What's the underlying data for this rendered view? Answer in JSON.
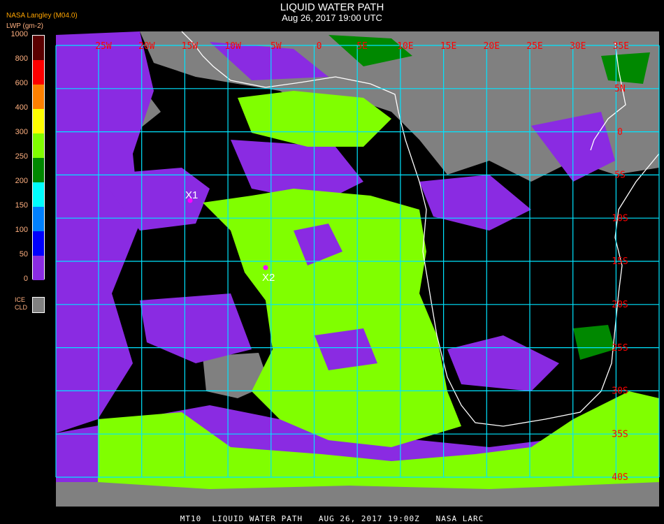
{
  "header": {
    "title": "LIQUID WATER PATH",
    "datetime": "Aug 26, 2017 19:00 UTC",
    "org": "NASA Langley (M04.0)"
  },
  "legend": {
    "unit": "LWP (gm-2)",
    "ticks": [
      "1000",
      "800",
      "600",
      "400",
      "300",
      "250",
      "200",
      "150",
      "100",
      "50",
      "0"
    ],
    "colors": [
      "#5a0000",
      "#ff0000",
      "#ff8000",
      "#ffff00",
      "#80ff00",
      "#008800",
      "#00ffff",
      "#0080ff",
      "#0000ff",
      "#8a2be2"
    ],
    "ice_label_1": "ICE",
    "ice_label_2": "CLD",
    "ice_color": "#808080"
  },
  "map": {
    "lon_labels": [
      "25W",
      "20W",
      "15W",
      "10W",
      "5W",
      "0",
      "5E",
      "10E",
      "15E",
      "20E",
      "25E",
      "30E",
      "35E"
    ],
    "lat_labels": [
      "5N",
      "0",
      "5S",
      "10S",
      "15S",
      "20S",
      "25S",
      "30S",
      "35S",
      "40S"
    ],
    "grid_color": "#00e5ff",
    "label_color": "#ff0000",
    "coast_color": "#ffffff",
    "markers": [
      {
        "label": "X1",
        "color": "#ff00ff"
      },
      {
        "label": "X2",
        "color": "#ff00ff"
      }
    ]
  },
  "footer": "MT10  LIQUID WATER PATH   AUG 26, 2017 19:00Z   NASA LARC"
}
